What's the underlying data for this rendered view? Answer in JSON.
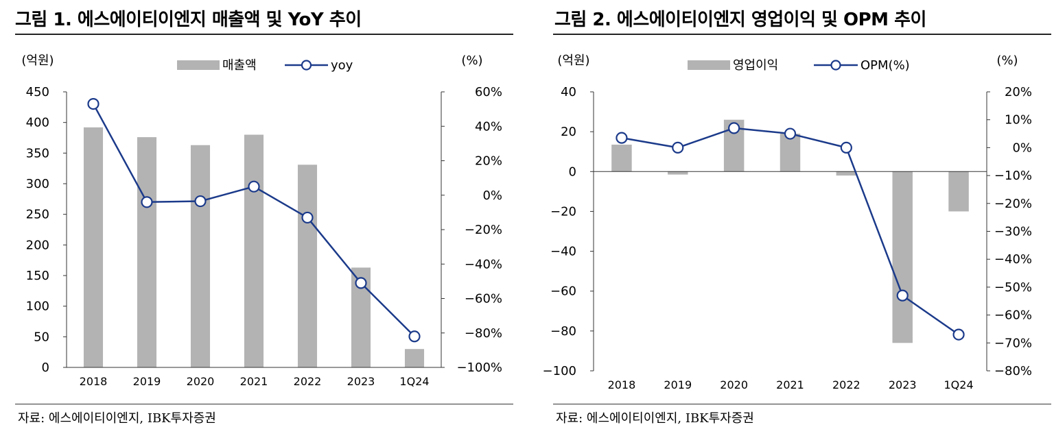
{
  "panels": [
    {
      "title": "그림 1. 에스에이티이엔지 매출액 및 YoY 추이",
      "source": "자료: 에스에이티이엔지, IBK투자증권"
    },
    {
      "title": "그림 2. 에스에이티이엔지 영업이익 및 OPM 추이",
      "source": "자료: 에스에이티이엔지, IBK투자증권"
    }
  ],
  "chart_data": [
    {
      "type": "bar+line",
      "title": "그림 1. 에스에이티이엔지 매출액 및 YoY 추이",
      "left_unit": "(억원)",
      "right_unit": "(%)",
      "categories": [
        "2018",
        "2019",
        "2020",
        "2021",
        "2022",
        "2023",
        "1Q24"
      ],
      "series": [
        {
          "name": "매출액",
          "kind": "bar",
          "axis": "left",
          "values": [
            392,
            376,
            363,
            380,
            331,
            163,
            30
          ]
        },
        {
          "name": "yoy",
          "kind": "line",
          "axis": "right",
          "values": [
            53,
            -4,
            -3.5,
            5,
            -13,
            -51,
            -82
          ]
        }
      ],
      "left_axis": {
        "range": [
          0,
          450
        ],
        "ticks": [
          0,
          50,
          100,
          150,
          200,
          250,
          300,
          350,
          400,
          450
        ],
        "tick_labels": [
          "0",
          "50",
          "100",
          "150",
          "200",
          "250",
          "300",
          "350",
          "400",
          "450"
        ]
      },
      "right_axis": {
        "range": [
          -100,
          60
        ],
        "ticks": [
          -100,
          -80,
          -60,
          -40,
          -20,
          0,
          20,
          40,
          60
        ],
        "tick_labels": [
          "−100%",
          "−80%",
          "−60%",
          "−40%",
          "−20%",
          "0%",
          "20%",
          "40%",
          "60%"
        ]
      },
      "legend_position": "top-center",
      "colors": {
        "bar": "#b3b3b3",
        "line": "#1b3a8a",
        "marker_fill": "#ffffff"
      }
    },
    {
      "type": "bar+line",
      "title": "그림 2. 에스에이티이엔지 영업이익 및 OPM 추이",
      "left_unit": "(억원)",
      "right_unit": "(%)",
      "categories": [
        "2018",
        "2019",
        "2020",
        "2021",
        "2022",
        "2023",
        "1Q24"
      ],
      "series": [
        {
          "name": "영업이익",
          "kind": "bar",
          "axis": "left",
          "values": [
            13.5,
            -1.5,
            26,
            19,
            -2,
            -86,
            -20
          ]
        },
        {
          "name": "OPM(%)",
          "kind": "line",
          "axis": "right",
          "values": [
            3.5,
            0,
            7,
            5,
            0,
            -53,
            -67
          ]
        }
      ],
      "left_axis": {
        "range": [
          -100,
          40
        ],
        "ticks": [
          -100,
          -80,
          -60,
          -40,
          -20,
          0,
          20,
          40
        ],
        "tick_labels": [
          "−100",
          "−80",
          "−60",
          "−40",
          "−20",
          "0",
          "20",
          "40"
        ]
      },
      "right_axis": {
        "range": [
          -80,
          20
        ],
        "ticks": [
          -80,
          -70,
          -60,
          -50,
          -40,
          -30,
          -20,
          -10,
          0,
          10,
          20
        ],
        "tick_labels": [
          "−80%",
          "−70%",
          "−60%",
          "−50%",
          "−40%",
          "−30%",
          "−20%",
          "−10%",
          "0%",
          "10%",
          "20%"
        ]
      },
      "legend_position": "top-center",
      "colors": {
        "bar": "#b3b3b3",
        "line": "#1b3a8a",
        "marker_fill": "#ffffff"
      }
    }
  ]
}
